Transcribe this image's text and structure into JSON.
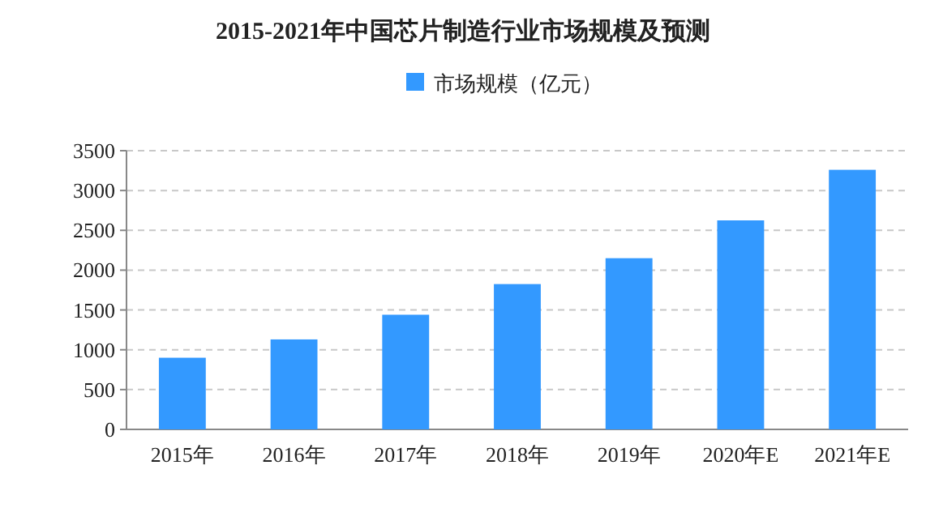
{
  "chart_data": {
    "type": "bar",
    "title": "2015-2021年中国芯片制造行业市场规模及预测",
    "categories": [
      "2015年",
      "2016年",
      "2017年",
      "2018年",
      "2019年",
      "2020年E",
      "2021年E"
    ],
    "series": [
      {
        "name": "市场规模（亿元）",
        "color": "#3399ff",
        "values": [
          900,
          1130,
          1440,
          1825,
          2150,
          2625,
          3260
        ]
      }
    ],
    "ylim": [
      0,
      3500
    ],
    "yticks": [
      0,
      500,
      1000,
      1500,
      2000,
      2500,
      3000,
      3500
    ],
    "grid": "y",
    "legend": "top"
  }
}
